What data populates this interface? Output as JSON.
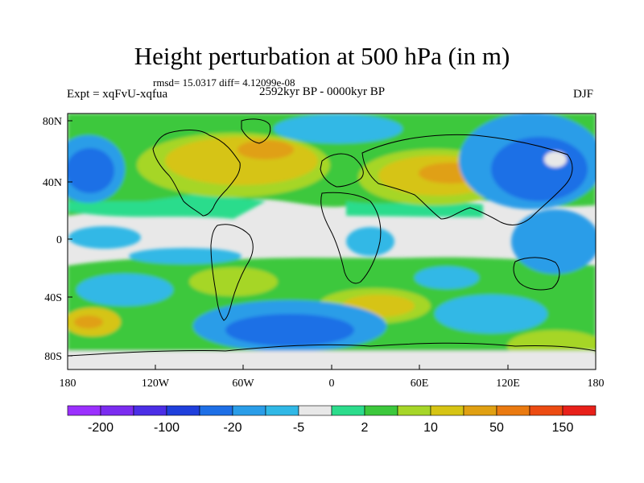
{
  "title": "Height perturbation at 500 hPa (in m)",
  "stats": "rmsd= 15.0317 diff= 4.12099e-08",
  "experiment": "Expt = xqFvU-xqfua",
  "period": "2592kyr BP - 0000kyr BP",
  "season": "DJF",
  "lat_labels": [
    "80N",
    "40N",
    "0",
    "40S",
    "80S"
  ],
  "lon_labels": [
    "180",
    "120W",
    "60W",
    "0",
    "60E",
    "120E",
    "180"
  ],
  "colorbar": {
    "colors": [
      "#9b30ff",
      "#7b2cf0",
      "#4b2ee6",
      "#1f3fdc",
      "#1e6fe6",
      "#2a9de8",
      "#30b8e6",
      "#e8e8e8",
      "#2cdc8c",
      "#3cc83c",
      "#a6d628",
      "#d6c414",
      "#e0a012",
      "#ea7a10",
      "#ec4b12",
      "#e8201a"
    ],
    "labels": [
      "-200",
      "-100",
      "-20",
      "-5",
      "2",
      "10",
      "50",
      "150"
    ]
  }
}
